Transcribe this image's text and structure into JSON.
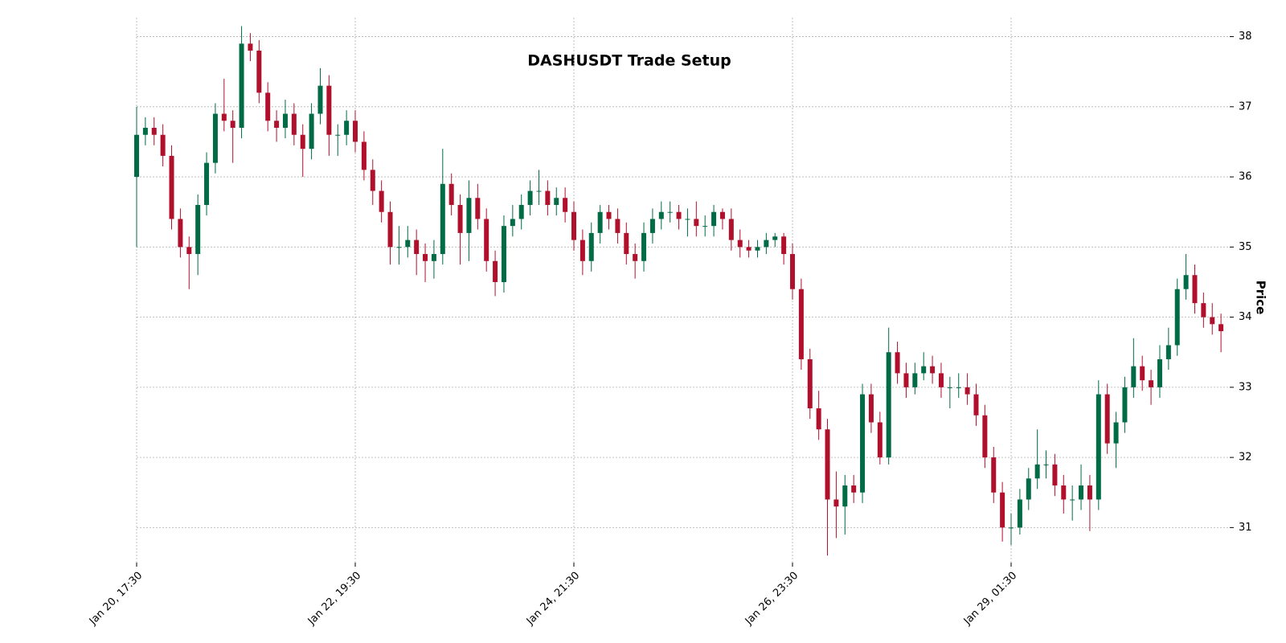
{
  "chart_data": {
    "type": "candlestick",
    "title": "DASHUSDT Trade Setup",
    "y_label": "Price",
    "categories": [
      "Jan 20, 17:30",
      null,
      null,
      null,
      null,
      null,
      null,
      null,
      null,
      null,
      null,
      null,
      null,
      null,
      null,
      null,
      null,
      null,
      null,
      null,
      null,
      null,
      null,
      null,
      null,
      "Jan 22, 19:30",
      null,
      null,
      null,
      null,
      null,
      null,
      null,
      null,
      null,
      null,
      null,
      null,
      null,
      null,
      null,
      null,
      null,
      null,
      null,
      null,
      null,
      null,
      null,
      null,
      "Jan 24, 21:30",
      null,
      null,
      null,
      null,
      null,
      null,
      null,
      null,
      null,
      null,
      null,
      null,
      null,
      null,
      null,
      null,
      null,
      null,
      null,
      null,
      null,
      null,
      null,
      null,
      "Jan 26, 23:30",
      null,
      null,
      null,
      null,
      null,
      null,
      null,
      null,
      null,
      null,
      null,
      null,
      null,
      null,
      null,
      null,
      null,
      null,
      null,
      null,
      null,
      null,
      null,
      null,
      "Jan 29, 01:30",
      null,
      null,
      null,
      null,
      null,
      null,
      null,
      null,
      null,
      null,
      null,
      null,
      null,
      null,
      null,
      null,
      null,
      null,
      null,
      null,
      null,
      null,
      null,
      null
    ],
    "open": [
      36.0,
      36.6,
      36.7,
      36.6,
      36.3,
      35.4,
      35.0,
      34.9,
      35.6,
      36.2,
      36.9,
      36.8,
      36.7,
      37.9,
      37.8,
      37.2,
      36.8,
      36.7,
      36.9,
      36.6,
      36.4,
      36.9,
      37.3,
      36.6,
      36.6,
      36.8,
      36.5,
      36.1,
      35.8,
      35.5,
      35.0,
      35.0,
      35.1,
      34.9,
      34.8,
      34.9,
      35.9,
      35.6,
      35.2,
      35.7,
      35.4,
      34.8,
      34.5,
      35.3,
      35.4,
      35.6,
      35.8,
      35.8,
      35.6,
      35.7,
      35.5,
      35.1,
      34.8,
      35.2,
      35.5,
      35.4,
      35.2,
      34.9,
      34.8,
      35.2,
      35.4,
      35.5,
      35.5,
      35.4,
      35.4,
      35.3,
      35.3,
      35.5,
      35.4,
      35.1,
      35.0,
      34.95,
      35.0,
      35.1,
      35.15,
      34.9,
      34.4,
      33.4,
      32.7,
      32.4,
      31.4,
      31.3,
      31.6,
      31.5,
      32.9,
      32.5,
      32.0,
      33.5,
      33.2,
      33.0,
      33.2,
      33.3,
      33.2,
      33.0,
      33.0,
      33.0,
      32.9,
      32.6,
      32.0,
      31.5,
      31.0,
      31.0,
      31.4,
      31.7,
      31.9,
      31.9,
      31.6,
      31.4,
      31.4,
      31.6,
      31.4,
      32.9,
      32.2,
      32.5,
      33.0,
      33.3,
      33.1,
      33.0,
      33.4,
      33.6,
      34.4,
      34.6,
      34.2,
      34.0,
      33.9
    ],
    "high": [
      37.0,
      36.85,
      36.85,
      36.75,
      36.45,
      35.55,
      35.15,
      35.75,
      36.35,
      37.05,
      37.4,
      36.95,
      38.15,
      38.05,
      37.95,
      37.35,
      36.95,
      37.1,
      37.05,
      36.75,
      37.05,
      37.55,
      37.45,
      36.75,
      36.95,
      36.95,
      36.65,
      36.25,
      35.95,
      35.65,
      35.3,
      35.3,
      35.25,
      35.05,
      35.1,
      36.4,
      36.05,
      35.75,
      35.95,
      35.9,
      35.55,
      34.95,
      35.45,
      35.6,
      35.75,
      35.95,
      36.1,
      35.95,
      35.85,
      35.85,
      35.65,
      35.25,
      35.35,
      35.6,
      35.6,
      35.55,
      35.35,
      35.05,
      35.35,
      35.55,
      35.65,
      35.65,
      35.6,
      35.55,
      35.65,
      35.45,
      35.6,
      35.55,
      35.55,
      35.25,
      35.1,
      35.1,
      35.2,
      35.2,
      35.2,
      35.05,
      34.55,
      33.55,
      32.95,
      32.55,
      31.8,
      31.75,
      31.75,
      33.05,
      33.05,
      32.65,
      33.85,
      33.65,
      33.35,
      33.35,
      33.5,
      33.45,
      33.35,
      33.15,
      33.2,
      33.2,
      33.05,
      32.75,
      32.15,
      31.65,
      31.2,
      31.55,
      31.85,
      32.4,
      32.1,
      32.05,
      31.75,
      31.6,
      31.9,
      31.75,
      33.1,
      33.05,
      32.65,
      33.15,
      33.7,
      33.45,
      33.25,
      33.6,
      33.85,
      34.55,
      34.9,
      34.75,
      34.35,
      34.2,
      34.05
    ],
    "low": [
      35.0,
      36.45,
      36.45,
      36.15,
      35.25,
      34.85,
      34.4,
      34.6,
      35.45,
      36.05,
      36.65,
      36.2,
      36.55,
      37.65,
      37.05,
      36.65,
      36.5,
      36.55,
      36.45,
      36.0,
      36.25,
      36.75,
      36.3,
      36.3,
      36.45,
      36.35,
      35.95,
      35.6,
      35.35,
      34.75,
      34.75,
      34.85,
      34.6,
      34.5,
      34.55,
      34.75,
      35.45,
      34.75,
      34.8,
      35.25,
      34.65,
      34.3,
      34.35,
      35.15,
      35.25,
      35.45,
      35.6,
      35.45,
      35.45,
      35.35,
      34.95,
      34.6,
      34.65,
      35.05,
      35.25,
      35.05,
      34.75,
      34.55,
      34.65,
      35.05,
      35.25,
      35.35,
      35.25,
      35.15,
      35.15,
      35.15,
      35.15,
      35.25,
      34.95,
      34.85,
      34.85,
      34.85,
      34.9,
      35.0,
      34.75,
      34.25,
      33.25,
      32.55,
      32.25,
      30.6,
      30.85,
      30.9,
      31.35,
      31.35,
      32.35,
      31.9,
      31.9,
      33.05,
      32.85,
      32.9,
      33.1,
      33.05,
      32.85,
      32.7,
      32.85,
      32.75,
      32.45,
      31.85,
      31.35,
      30.8,
      30.75,
      30.9,
      31.25,
      31.55,
      31.7,
      31.45,
      31.2,
      31.1,
      31.25,
      30.95,
      31.25,
      32.05,
      31.85,
      32.35,
      32.85,
      32.95,
      32.75,
      32.85,
      33.25,
      33.45,
      34.25,
      34.05,
      33.85,
      33.75,
      33.5
    ],
    "close": [
      36.6,
      36.7,
      36.6,
      36.3,
      35.4,
      35.0,
      34.9,
      35.6,
      36.2,
      36.9,
      36.8,
      36.7,
      37.9,
      37.8,
      37.2,
      36.8,
      36.7,
      36.9,
      36.6,
      36.4,
      36.9,
      37.3,
      36.6,
      36.6,
      36.8,
      36.5,
      36.1,
      35.8,
      35.5,
      35.0,
      35.0,
      35.1,
      34.9,
      34.8,
      34.9,
      35.9,
      35.6,
      35.2,
      35.7,
      35.4,
      34.8,
      34.5,
      35.3,
      35.4,
      35.6,
      35.8,
      35.8,
      35.6,
      35.7,
      35.5,
      35.1,
      34.8,
      35.2,
      35.5,
      35.4,
      35.2,
      34.9,
      34.8,
      35.2,
      35.4,
      35.5,
      35.5,
      35.4,
      35.4,
      35.3,
      35.3,
      35.5,
      35.4,
      35.1,
      35.0,
      34.95,
      35.0,
      35.1,
      35.15,
      34.9,
      34.4,
      33.4,
      32.7,
      32.4,
      31.4,
      31.3,
      31.6,
      31.5,
      32.9,
      32.5,
      32.0,
      33.5,
      33.2,
      33.0,
      33.2,
      33.3,
      33.2,
      33.0,
      33.0,
      33.0,
      32.9,
      32.6,
      32.0,
      31.5,
      31.0,
      31.0,
      31.4,
      31.7,
      31.9,
      31.9,
      31.6,
      31.4,
      31.4,
      31.6,
      31.4,
      32.9,
      32.2,
      32.5,
      33.0,
      33.3,
      33.1,
      33.0,
      33.4,
      33.6,
      34.4,
      34.6,
      34.2,
      34.0,
      33.9,
      33.8
    ],
    "up_color": "#006b45",
    "down_color": "#b0102b",
    "ylim": [
      30.5,
      38.27
    ],
    "yticks": [
      31,
      32,
      33,
      34,
      35,
      36,
      37,
      38
    ],
    "grid": true
  }
}
